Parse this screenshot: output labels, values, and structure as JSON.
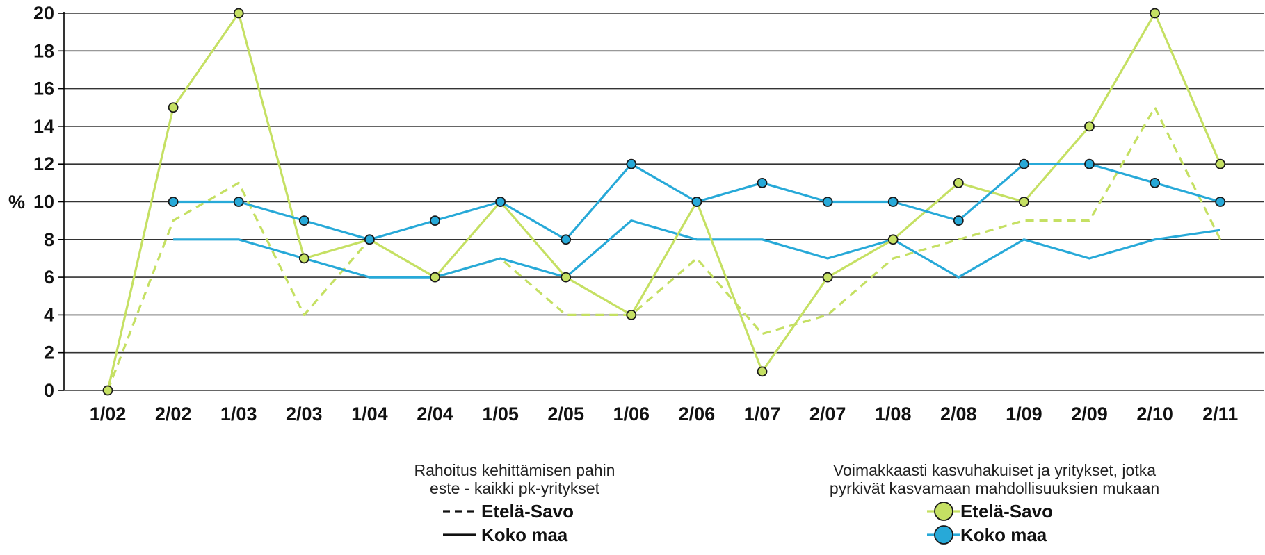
{
  "chart_data": {
    "type": "line",
    "title": "",
    "xlabel": "",
    "ylabel": "%",
    "ylim": [
      0,
      20
    ],
    "yticks": [
      0,
      2,
      4,
      6,
      8,
      10,
      12,
      14,
      16,
      18,
      20
    ],
    "categories": [
      "1/02",
      "2/02",
      "1/03",
      "2/03",
      "1/04",
      "2/04",
      "1/05",
      "2/05",
      "1/06",
      "2/06",
      "1/07",
      "2/07",
      "1/08",
      "2/08",
      "1/09",
      "2/09",
      "2/10",
      "2/11"
    ],
    "grid": true,
    "legend_groups": [
      {
        "title_lines": [
          "Rahoitus kehittämisen pahin",
          "este - kaikki pk-yritykset"
        ],
        "series": [
          {
            "name": "Etelä-Savo",
            "style": "dashed",
            "markers": false,
            "color": "#c5e063",
            "values": [
              0,
              9,
              11,
              4,
              8,
              6,
              7,
              4,
              4,
              7,
              3,
              4,
              7,
              8,
              9,
              9,
              15,
              8
            ]
          },
          {
            "name": "Koko maa",
            "style": "solid",
            "markers": false,
            "color": "#27a9d8",
            "values": [
              null,
              8,
              8,
              7,
              6,
              6,
              7,
              6,
              9,
              8,
              8,
              7,
              8,
              6,
              8,
              7,
              8,
              8.5
            ]
          }
        ]
      },
      {
        "title_lines": [
          "Voimakkaasti kasvuhakuiset ja yritykset, jotka",
          "pyrkivät kasvamaan mahdollisuuksien mukaan"
        ],
        "series": [
          {
            "name": "Etelä-Savo",
            "style": "solid",
            "markers": true,
            "color": "#c5e063",
            "values": [
              0,
              15,
              20,
              7,
              8,
              6,
              10,
              6,
              4,
              10,
              1,
              6,
              8,
              11,
              10,
              14,
              20,
              12
            ]
          },
          {
            "name": "Koko maa",
            "style": "solid",
            "markers": true,
            "color": "#27a9d8",
            "values": [
              null,
              10,
              10,
              9,
              8,
              9,
              10,
              8,
              12,
              10,
              11,
              10,
              10,
              9,
              12,
              12,
              11,
              10
            ]
          }
        ]
      }
    ],
    "colors": {
      "lime": "#c5e063",
      "blue": "#27a9d8",
      "grid": "#333333"
    }
  }
}
